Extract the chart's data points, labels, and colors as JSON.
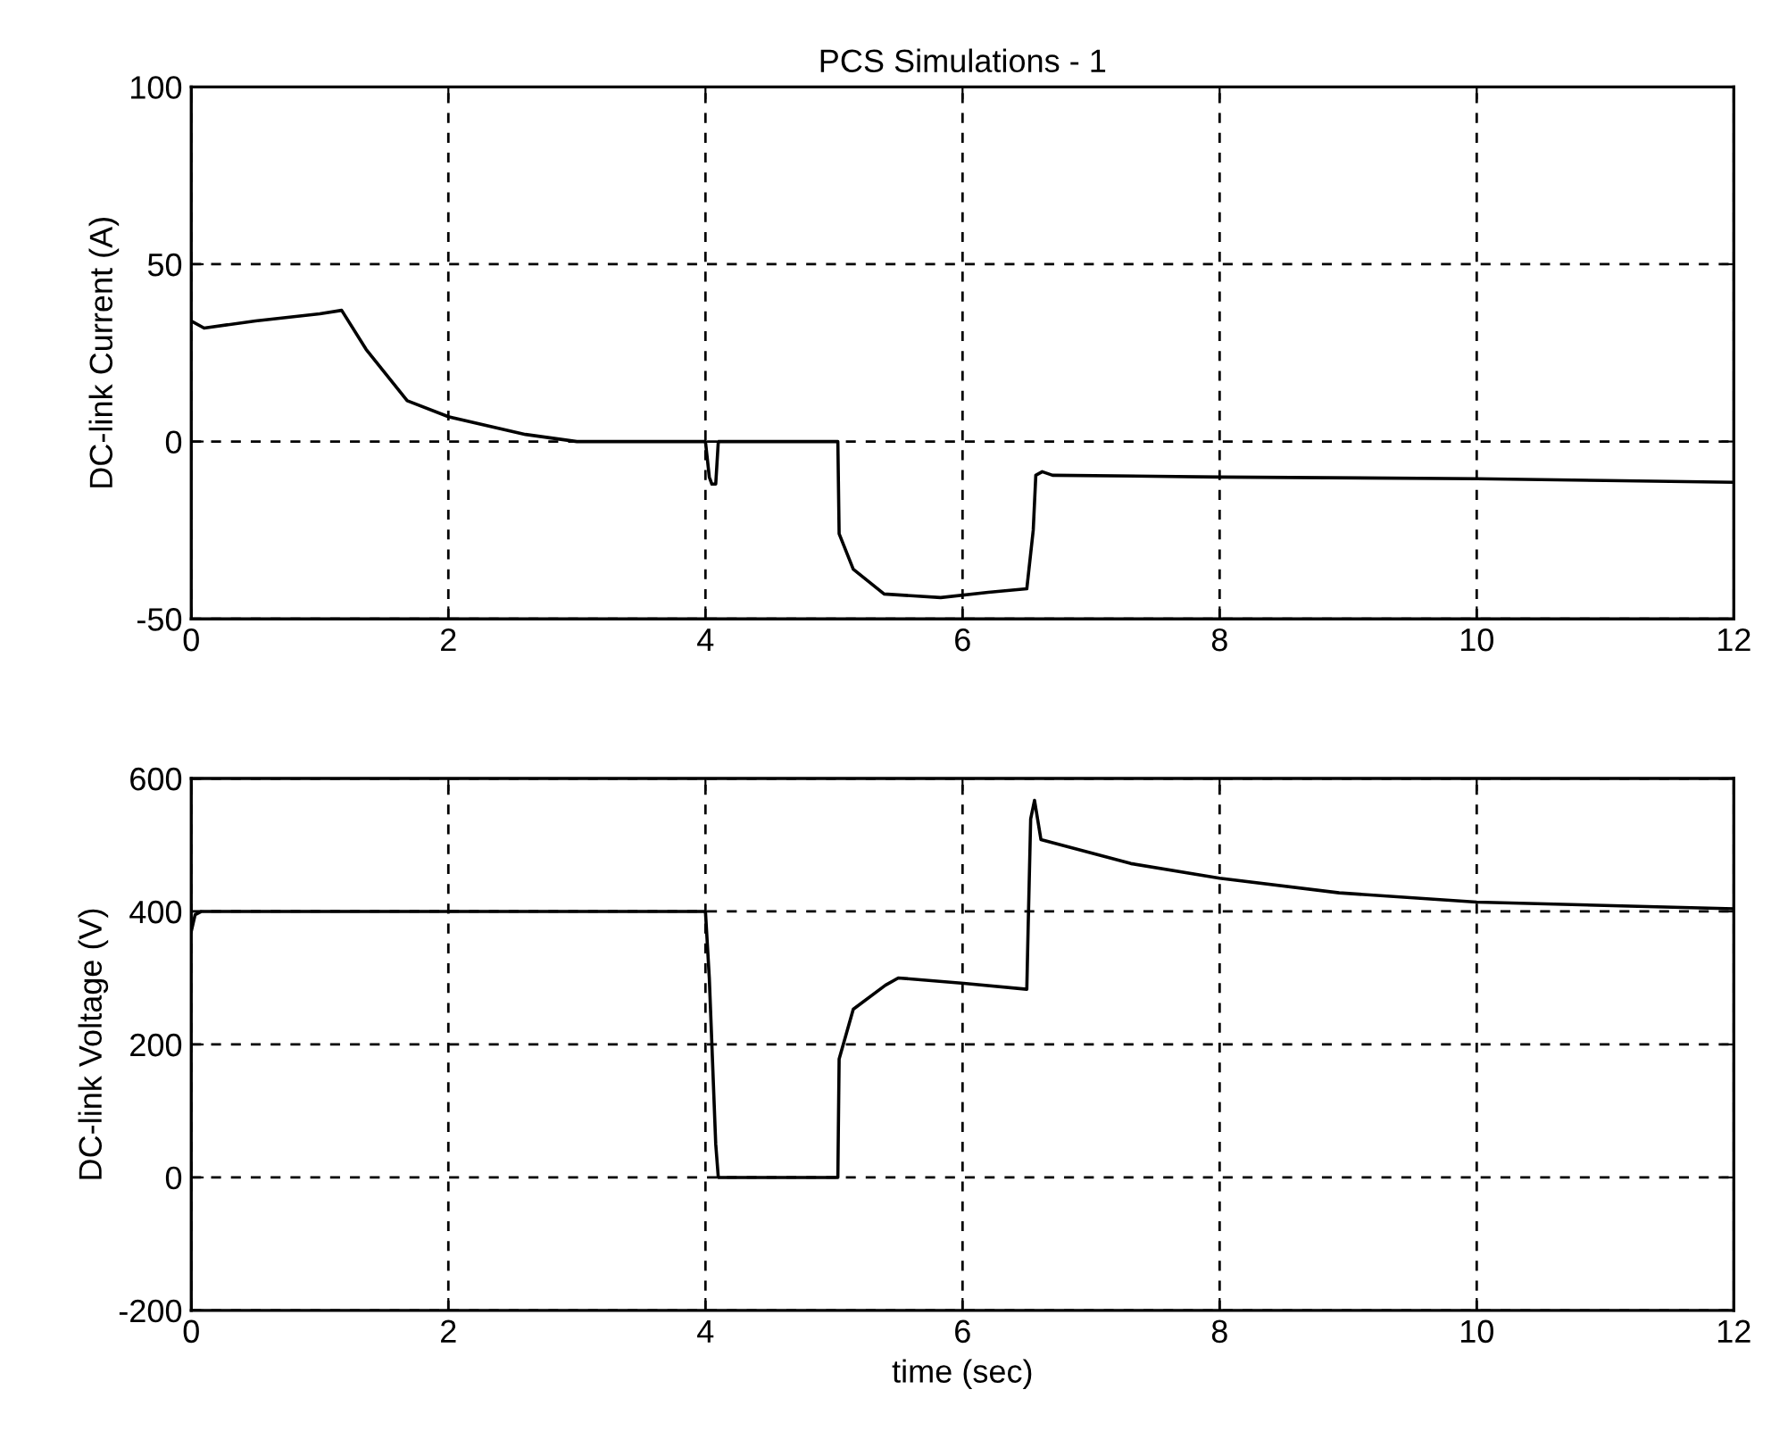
{
  "chart_data": [
    {
      "type": "line",
      "title": "PCS Simulations - 1",
      "ylabel": "DC-link Current (A)",
      "xlim": [
        0,
        12
      ],
      "xticks": [
        0,
        2,
        4,
        6,
        8,
        10,
        12
      ],
      "ylim": [
        -50,
        100
      ],
      "yticks": [
        -50,
        0,
        50,
        100
      ],
      "grid": true,
      "line_style": "solid",
      "marker": "none",
      "series": [
        {
          "color": "#000000",
          "x": [
            0,
            0.1,
            0.5,
            1.0,
            1.17,
            1.36,
            1.68,
            2.0,
            2.6,
            3.0,
            4.0,
            4.03,
            4.05,
            4.08,
            4.1,
            4.12,
            5.03,
            5.04,
            5.15,
            5.39,
            5.83,
            6.2,
            6.5,
            6.55,
            6.57,
            6.62,
            6.7,
            8,
            10,
            11,
            12
          ],
          "values": [
            34,
            32,
            34,
            36,
            37,
            26,
            11.5,
            7,
            2,
            0,
            0,
            -10,
            -12,
            -12,
            0,
            0,
            0,
            -26,
            -36,
            -43,
            -44,
            -42.5,
            -41.5,
            -25,
            -9.5,
            -8.5,
            -9.5,
            -10,
            -10.5,
            -11,
            -11.5
          ]
        }
      ]
    },
    {
      "type": "line",
      "xlabel": "time (sec)",
      "ylabel": "DC-link Voltage (V)",
      "xlim": [
        0,
        12
      ],
      "xticks": [
        0,
        2,
        4,
        6,
        8,
        10,
        12
      ],
      "ylim": [
        -200,
        600
      ],
      "yticks": [
        -200,
        0,
        200,
        400,
        600
      ],
      "grid": true,
      "line_style": "solid",
      "marker": "none",
      "series": [
        {
          "color": "#000000",
          "x": [
            0,
            0.03,
            0.08,
            4.0,
            4.03,
            4.08,
            4.1,
            5.03,
            5.04,
            5.15,
            5.4,
            5.5,
            6.01,
            6.5,
            6.51,
            6.53,
            6.56,
            6.61,
            7.31,
            8,
            8.93,
            10,
            12
          ],
          "values": [
            370,
            395,
            400,
            400,
            300,
            50,
            0,
            0,
            178,
            253,
            289,
            300,
            292,
            283,
            372,
            539,
            567,
            508,
            472,
            450,
            428,
            414,
            404
          ]
        }
      ]
    }
  ]
}
